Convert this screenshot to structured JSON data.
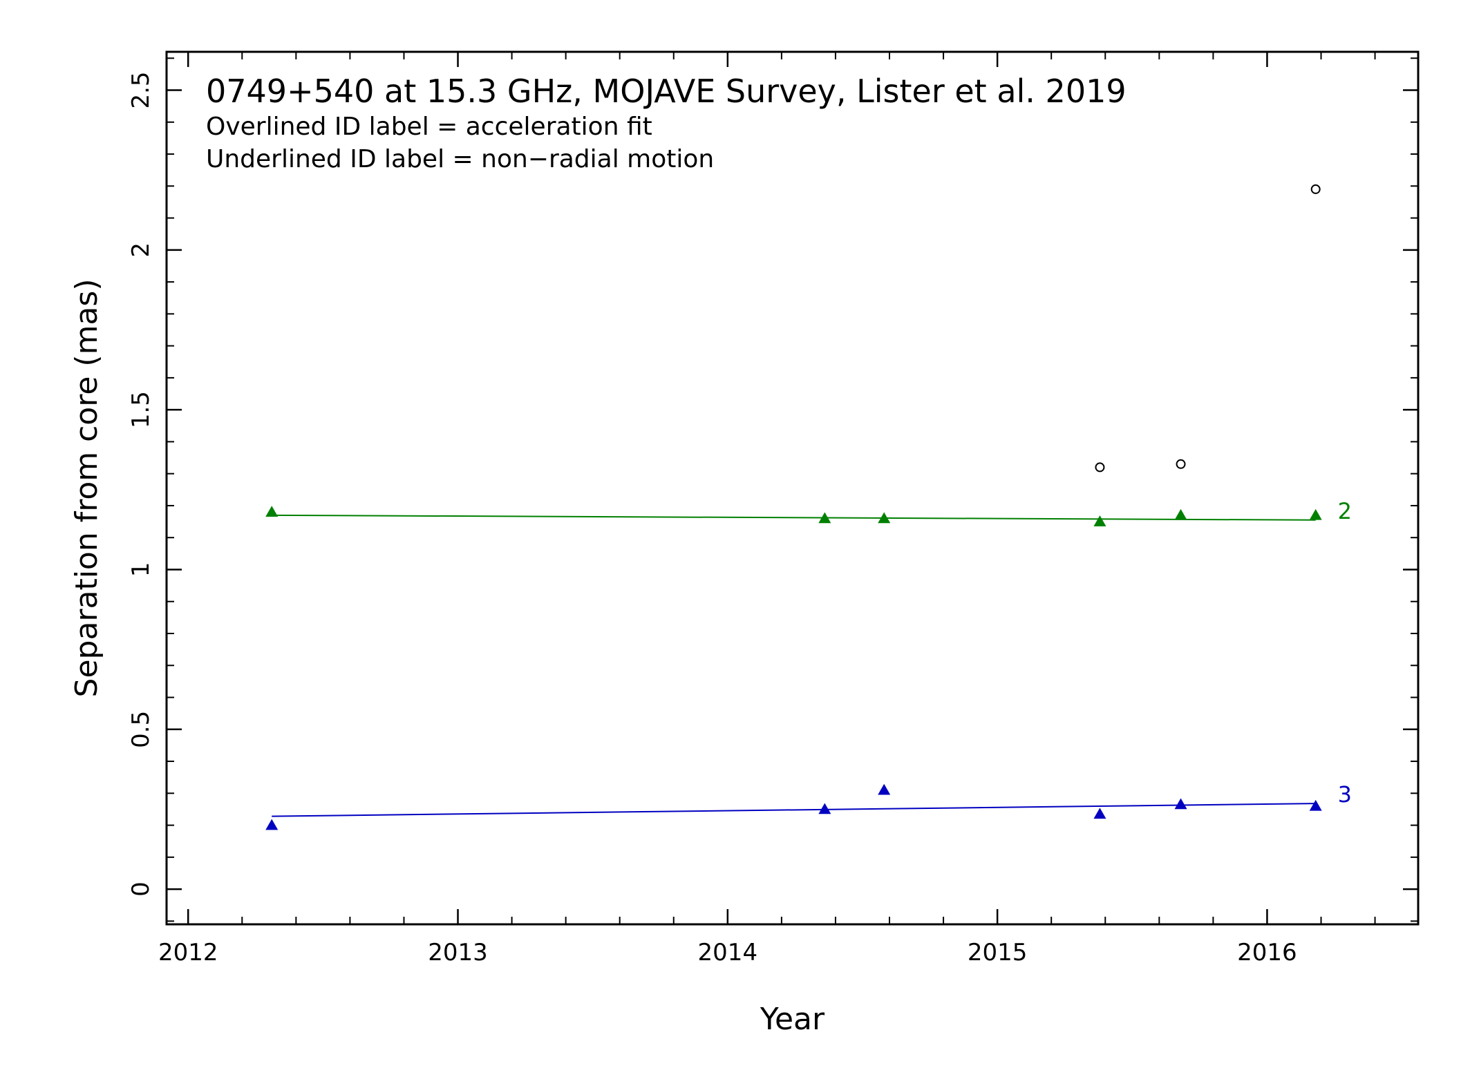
{
  "chart_data": {
    "type": "scatter",
    "title": "0749+540 at 15.3 GHz, MOJAVE Survey, Lister et al. 2019",
    "notes": [
      "Overlined ID label = acceleration fit",
      "Underlined ID label = non−radial motion"
    ],
    "xlabel": "Year",
    "ylabel": "Separation from core (mas)",
    "xlim": [
      2011.92,
      2016.56
    ],
    "ylim": [
      -0.11,
      2.62
    ],
    "xticks": [
      2012,
      2013,
      2014,
      2015,
      2016
    ],
    "xtick_labels": [
      "2012",
      "2013",
      "2014",
      "2015",
      "2016"
    ],
    "yticks": [
      0,
      0.5,
      1,
      1.5,
      2,
      2.5
    ],
    "ytick_labels": [
      "0",
      "0.5",
      "1",
      "1.5",
      "2",
      "2.5"
    ],
    "x_minor_step": 0.2,
    "y_minor_step": 0.1,
    "grid": false,
    "series": [
      {
        "name": "2",
        "color": "#008000",
        "marker": "triangle",
        "x": [
          2012.31,
          2014.36,
          2014.58,
          2015.38,
          2015.68,
          2016.18
        ],
        "y": [
          1.18,
          1.16,
          1.16,
          1.15,
          1.17,
          1.17
        ],
        "fit": {
          "x": [
            2012.31,
            2016.18
          ],
          "y": [
            1.17,
            1.155
          ]
        }
      },
      {
        "name": "3",
        "color": "#0000c0",
        "marker": "triangle",
        "x": [
          2012.31,
          2014.36,
          2014.58,
          2015.38,
          2015.68,
          2016.18
        ],
        "y": [
          0.2,
          0.25,
          0.31,
          0.235,
          0.265,
          0.26
        ],
        "fit": {
          "x": [
            2012.31,
            2016.18
          ],
          "y": [
            0.228,
            0.268
          ]
        }
      },
      {
        "color": "#000000",
        "marker": "circle",
        "x": [
          2015.38,
          2015.68,
          2016.18
        ],
        "y": [
          1.32,
          1.33,
          2.19
        ]
      }
    ]
  }
}
